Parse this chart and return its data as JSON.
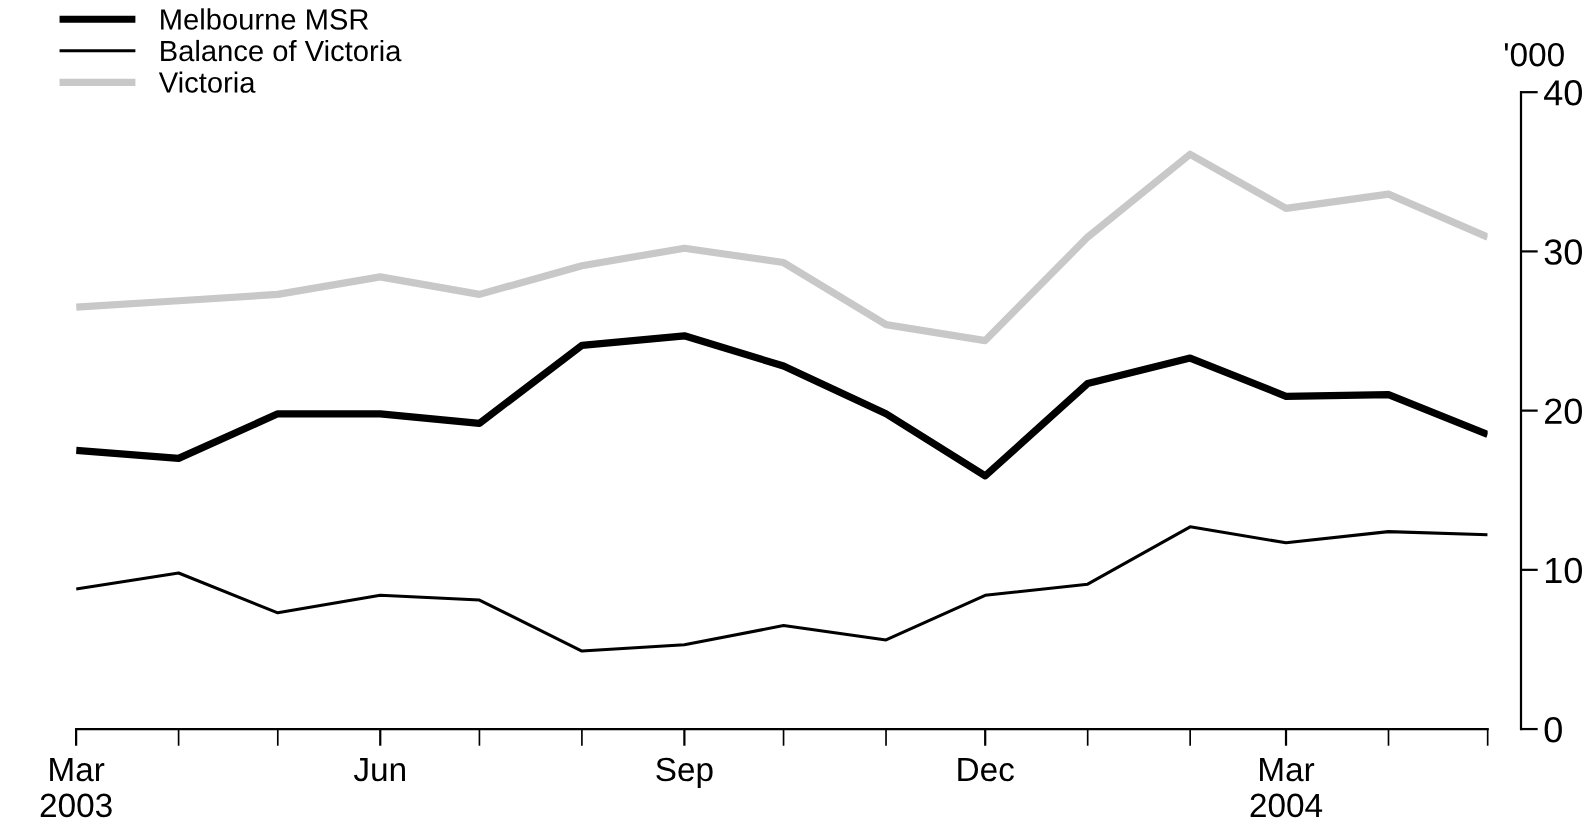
{
  "chart_data": {
    "type": "line",
    "ylabel": "'000",
    "x": [
      "2003-03",
      "2003-04",
      "2003-05",
      "2003-06",
      "2003-07",
      "2003-08",
      "2003-09",
      "2003-10",
      "2003-11",
      "2003-12",
      "2004-01",
      "2004-02",
      "2004-03",
      "2004-04",
      "2004-05"
    ],
    "series": [
      {
        "name": "Melbourne MSR",
        "color": "#000000",
        "values": [
          17.5,
          17.0,
          19.8,
          19.8,
          19.2,
          24.1,
          24.7,
          22.8,
          19.8,
          15.9,
          21.7,
          23.3,
          20.9,
          21.0,
          18.5
        ]
      },
      {
        "name": "Balance of Victoria",
        "color": "#000000",
        "values": [
          8.8,
          9.8,
          7.3,
          8.4,
          8.1,
          4.9,
          5.3,
          6.5,
          5.6,
          8.4,
          9.1,
          12.7,
          11.7,
          12.4,
          12.2
        ]
      },
      {
        "name": "Victoria",
        "color": "#c8c8c8",
        "values": [
          26.5,
          26.9,
          27.3,
          28.4,
          27.3,
          29.1,
          30.2,
          29.3,
          25.4,
          24.4,
          30.9,
          36.1,
          32.7,
          33.6,
          30.9
        ]
      }
    ],
    "xlim": [
      "2003-03",
      "2004-05"
    ],
    "xticks": [
      {
        "value": "2003-03",
        "label": "Mar\n2003"
      },
      {
        "value": "2003-04",
        "label": null
      },
      {
        "value": "2003-05",
        "label": null
      },
      {
        "value": "2003-06",
        "label": "Jun"
      },
      {
        "value": "2003-07",
        "label": null
      },
      {
        "value": "2003-08",
        "label": null
      },
      {
        "value": "2003-09",
        "label": "Sep"
      },
      {
        "value": "2003-10",
        "label": null
      },
      {
        "value": "2003-11",
        "label": null
      },
      {
        "value": "2003-12",
        "label": "Dec"
      },
      {
        "value": "2004-01",
        "label": null
      },
      {
        "value": "2004-02",
        "label": null
      },
      {
        "value": "2004-03",
        "label": "Mar\n2004"
      },
      {
        "value": "2004-04",
        "label": null
      },
      {
        "value": "2004-05",
        "label": null
      }
    ],
    "ylim": [
      0,
      40
    ],
    "yticks": [
      0,
      10,
      20,
      30,
      40
    ],
    "grid": false,
    "legend": "top left",
    "marker": "none",
    "line_style": "solid"
  }
}
